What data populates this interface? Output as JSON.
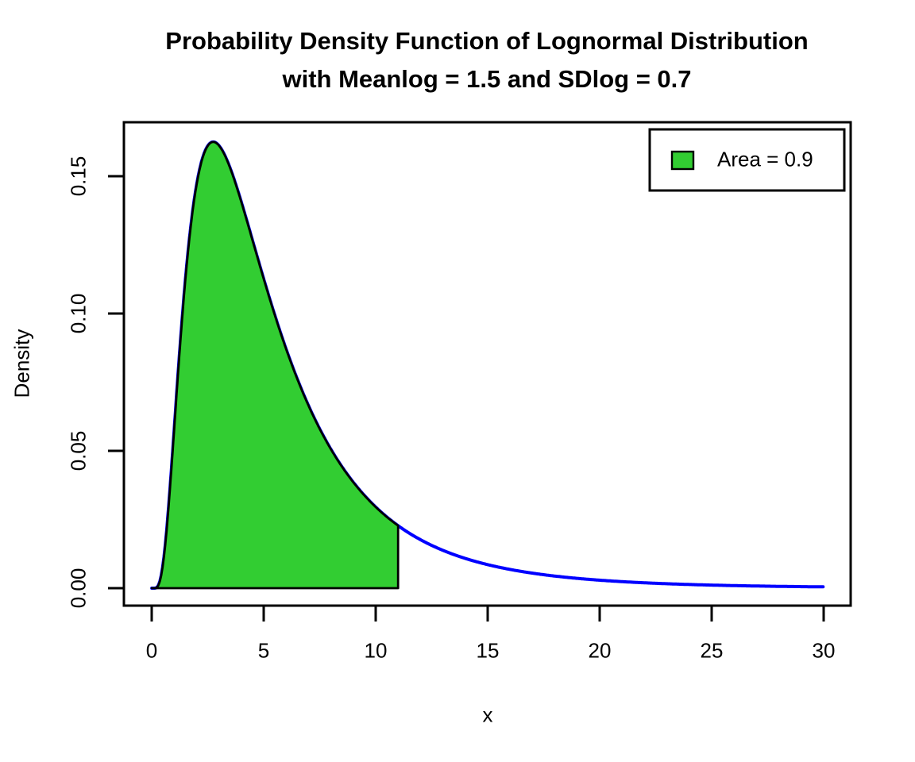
{
  "title": {
    "line1": "Probability Density Function of Lognormal Distribution",
    "line2": "with Meanlog = 1.5 and SDlog = 0.7"
  },
  "axes": {
    "xlabel": "x",
    "ylabel": "Density",
    "x_tick_labels": [
      "0",
      "5",
      "10",
      "15",
      "20",
      "25",
      "30"
    ],
    "y_tick_labels": [
      "0.00",
      "0.05",
      "0.10",
      "0.15"
    ]
  },
  "legend": {
    "label": "Area = 0.9",
    "position": "topright"
  },
  "colors": {
    "curve": "#0000FF",
    "area_fill": "#32CD32",
    "area_border": "#000000",
    "axis": "#000000",
    "text": "#000000",
    "background": "#FFFFFF"
  },
  "chart_data": {
    "type": "area",
    "title": "Probability Density Function of Lognormal Distribution with Meanlog = 1.5 and SDlog = 0.7",
    "xlabel": "x",
    "ylabel": "Density",
    "distribution": "lognormal",
    "params": {
      "meanlog": 1.5,
      "sdlog": 0.7
    },
    "xlim": [
      0,
      30
    ],
    "ylim": [
      0,
      0.1627
    ],
    "x_ticks": [
      0,
      5,
      10,
      15,
      20,
      25,
      30
    ],
    "y_ticks": [
      0.0,
      0.05,
      0.1,
      0.15
    ],
    "grid": false,
    "legend_position": "topright",
    "peak": {
      "x": 2.75,
      "y": 0.1627
    },
    "shaded_region": {
      "from": 0,
      "to": 11,
      "area": 0.9,
      "label": "Area = 0.9"
    },
    "curve_points": {
      "x": [
        0.5,
        1,
        1.5,
        2,
        2.5,
        2.75,
        3,
        4,
        5,
        6,
        7,
        8,
        9,
        10,
        11,
        12,
        14,
        16,
        18,
        20,
        25,
        30
      ],
      "y": [
        0.0084,
        0.0574,
        0.1119,
        0.1467,
        0.161,
        0.1625,
        0.1612,
        0.1406,
        0.1126,
        0.0871,
        0.0665,
        0.0506,
        0.0386,
        0.0295,
        0.0228,
        0.0177,
        0.0108,
        0.0068,
        0.0044,
        0.0029,
        0.0011,
        0.0005
      ]
    }
  }
}
